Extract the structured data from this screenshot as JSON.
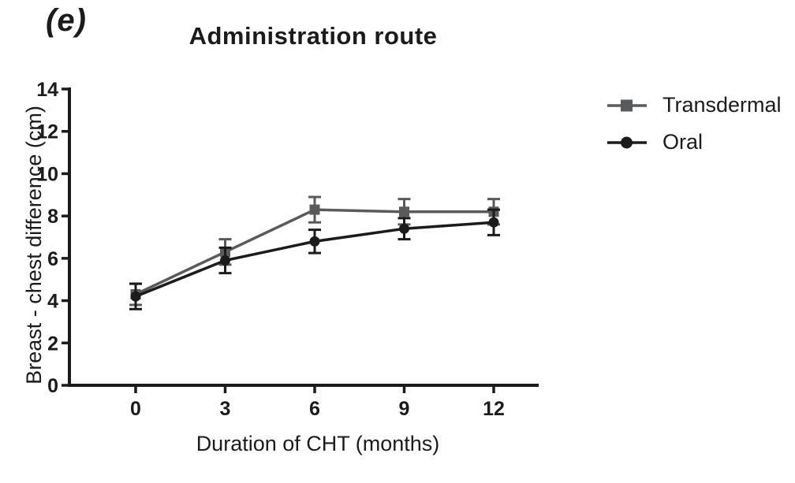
{
  "figure": {
    "panel_label": "(e)"
  },
  "chart_data": {
    "type": "line",
    "title": "Administration route",
    "xlabel": "Duration of CHT (months)",
    "ylabel": "Breast - chest difference (cm)",
    "x": [
      0,
      3,
      6,
      9,
      12
    ],
    "xticks": [
      0,
      3,
      6,
      9,
      12
    ],
    "yticks": [
      0,
      2,
      4,
      6,
      8,
      10,
      12,
      14
    ],
    "xlim": [
      -2.3,
      13.5
    ],
    "ylim": [
      0,
      14
    ],
    "grid": false,
    "legend_position": "right",
    "axis_color": "#1b1b1b",
    "series": [
      {
        "name": "Transdermal",
        "marker": "square",
        "color": "#595a5c",
        "values": [
          4.3,
          6.3,
          8.3,
          8.2,
          8.2
        ],
        "errors": [
          0.5,
          0.6,
          0.6,
          0.6,
          0.6
        ]
      },
      {
        "name": "Oral",
        "marker": "circle",
        "color": "#1b1b1b",
        "values": [
          4.2,
          5.9,
          6.8,
          7.4,
          7.7
        ],
        "errors": [
          0.6,
          0.6,
          0.55,
          0.5,
          0.6
        ]
      }
    ]
  }
}
